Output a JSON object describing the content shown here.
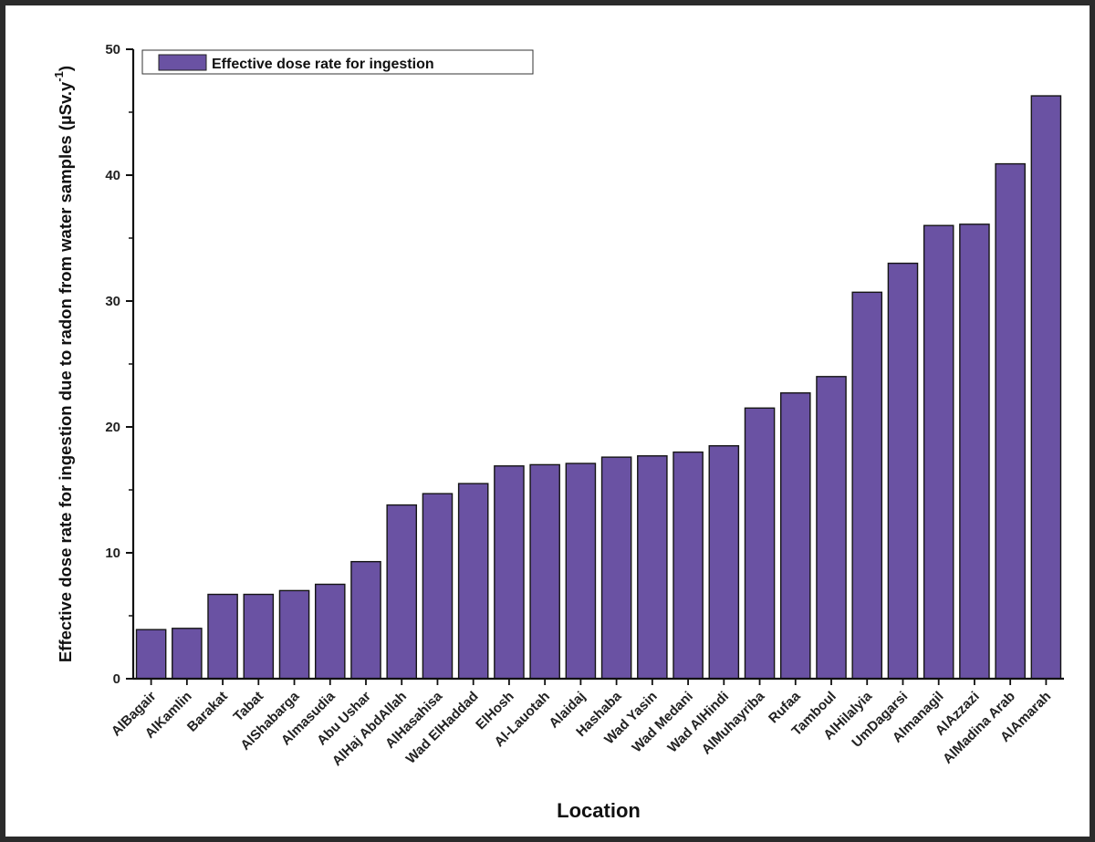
{
  "chart_data": {
    "type": "bar",
    "title": "",
    "xlabel": "Location",
    "ylabel": "Effective dose rate for ingestion due to radon from water samples (µSv.y",
    "ylabel_superscript": "-1",
    "ylabel_close": ")",
    "ylim": [
      0,
      50
    ],
    "yticks": [
      "0",
      "10",
      "20",
      "30",
      "40",
      "50"
    ],
    "grid": false,
    "legend_position": "top-left",
    "bar_color": "#6a52a3",
    "categories": [
      "AlBagair",
      "AlKamlin",
      "Barakat",
      "Tabat",
      "AlShabarga",
      "Almasudia",
      "Abu Ushar",
      "AlHaj AbdAllah",
      "AlHasahisa",
      "Wad ElHaddad",
      "ElHosh",
      "Al-Lauotah",
      "Alaidaj",
      "Hashaba",
      "Wad Yasin",
      "Wad Medani",
      "Wad AlHindi",
      "AlMuhayriba",
      "Rufaa",
      "Tamboul",
      "AlHilalyia",
      "UmDagarsi",
      "Almanagil",
      "AlAzzazi",
      "AlMadina Arab",
      "AlAmarah"
    ],
    "series": [
      {
        "name": "Effective dose rate for ingestion",
        "values": [
          3.9,
          4.0,
          6.7,
          6.7,
          7.0,
          7.5,
          9.3,
          13.8,
          14.7,
          15.5,
          16.9,
          17.0,
          17.1,
          17.6,
          17.7,
          18.0,
          18.5,
          21.5,
          22.7,
          24.0,
          30.7,
          33.0,
          36.0,
          36.1,
          40.9,
          46.3
        ]
      }
    ]
  }
}
